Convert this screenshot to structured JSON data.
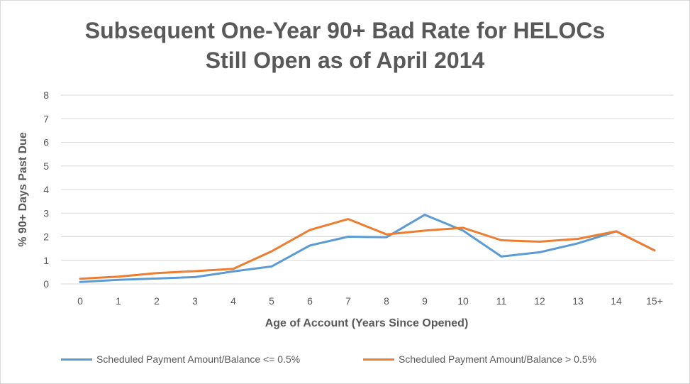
{
  "chart_data": {
    "type": "line",
    "title_lines": [
      "Subsequent One-Year 90+ Bad Rate for HELOCs",
      "Still Open as of April 2014"
    ],
    "xlabel": "Age of Account (Years Since Opened)",
    "ylabel": "% 90+ Days Past Due",
    "categories": [
      "0",
      "1",
      "2",
      "3",
      "4",
      "5",
      "6",
      "7",
      "8",
      "9",
      "10",
      "11",
      "12",
      "13",
      "14",
      "15+"
    ],
    "ylim": [
      0,
      8
    ],
    "yticks": [
      0,
      1,
      2,
      3,
      4,
      5,
      6,
      7,
      8
    ],
    "grid": true,
    "legend_position": "bottom",
    "series": [
      {
        "name": "Scheduled Payment Amount/Balance <= 0.5%",
        "color": "#5b9bd5",
        "values": [
          0.08,
          0.17,
          0.23,
          0.29,
          0.53,
          0.74,
          1.63,
          2.0,
          1.98,
          2.93,
          2.26,
          1.16,
          1.34,
          1.72,
          2.23,
          1.42
        ]
      },
      {
        "name": "Scheduled Payment Amount/Balance > 0.5%",
        "color": "#ed7d31",
        "values": [
          0.22,
          0.31,
          0.46,
          0.54,
          0.64,
          1.38,
          2.29,
          2.75,
          2.1,
          2.26,
          2.38,
          1.85,
          1.79,
          1.91,
          2.23,
          1.42
        ]
      }
    ]
  }
}
